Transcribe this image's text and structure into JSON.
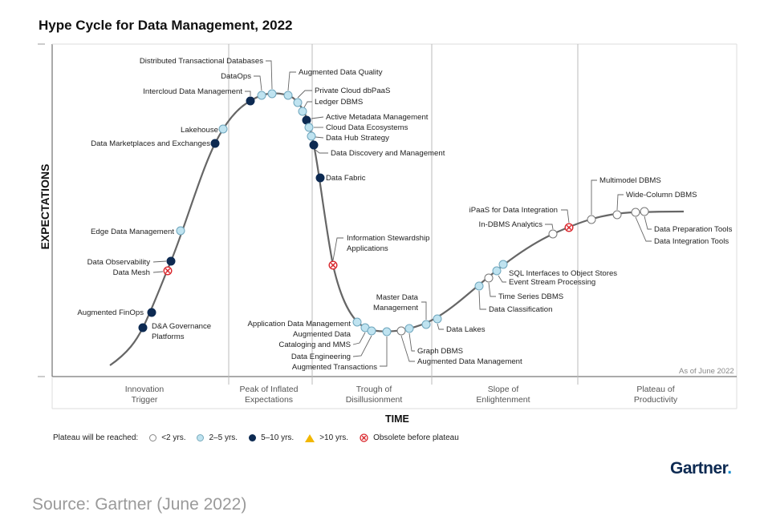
{
  "title": "Hype Cycle for Data Management, 2022",
  "y_axis_label": "EXPECTATIONS",
  "x_axis_label": "TIME",
  "as_of": "As of June 2022",
  "phases": [
    {
      "lines": [
        "Innovation",
        "Trigger"
      ]
    },
    {
      "lines": [
        "Peak of Inflated",
        "Expectations"
      ]
    },
    {
      "lines": [
        "Trough of",
        "Disillusionment"
      ]
    },
    {
      "lines": [
        "Slope of",
        "Enlightenment"
      ]
    },
    {
      "lines": [
        "Plateau of",
        "Productivity"
      ]
    }
  ],
  "legend": {
    "title": "Plateau will be reached:",
    "items": [
      {
        "type": "lt2",
        "label": "<2 yrs."
      },
      {
        "type": "2to5",
        "label": "2–5 yrs."
      },
      {
        "type": "5to10",
        "label": "5–10 yrs."
      },
      {
        "type": "gt10",
        "label": ">10 yrs."
      },
      {
        "type": "obsolete",
        "label": "Obsolete before plateau"
      }
    ]
  },
  "colors": {
    "lt2": "#ffffff",
    "2to5": "#bfe3f0",
    "5to10": "#0d2a52",
    "gt10": "#f2b701",
    "obsolete": "#d9252b",
    "curve": "#666666"
  },
  "technologies": [
    {
      "lines": [
        "D&A Governance",
        "Platforms"
      ],
      "type": "5to10"
    },
    {
      "lines": [
        "Augmented FinOps"
      ],
      "type": "5to10"
    },
    {
      "lines": [
        "Data Mesh"
      ],
      "type": "obsolete"
    },
    {
      "lines": [
        "Data Observability"
      ],
      "type": "5to10"
    },
    {
      "lines": [
        "Edge Data Management"
      ],
      "type": "2to5"
    },
    {
      "lines": [
        "Data Marketplaces and Exchanges"
      ],
      "type": "5to10"
    },
    {
      "lines": [
        "Lakehouse"
      ],
      "type": "2to5"
    },
    {
      "lines": [
        "Intercloud Data Management"
      ],
      "type": "5to10"
    },
    {
      "lines": [
        "DataOps"
      ],
      "type": "2to5"
    },
    {
      "lines": [
        "Distributed Transactional Databases"
      ],
      "type": "2to5"
    },
    {
      "lines": [
        "Augmented Data Quality"
      ],
      "type": "2to5"
    },
    {
      "lines": [
        "Private Cloud dbPaaS"
      ],
      "type": "2to5"
    },
    {
      "lines": [
        "Ledger DBMS"
      ],
      "type": "2to5"
    },
    {
      "lines": [
        "Active Metadata Management"
      ],
      "type": "5to10"
    },
    {
      "lines": [
        "Cloud Data Ecosystems"
      ],
      "type": "2to5"
    },
    {
      "lines": [
        "Data Hub Strategy"
      ],
      "type": "2to5"
    },
    {
      "lines": [
        "Data Discovery and Management"
      ],
      "type": "5to10"
    },
    {
      "lines": [
        "Data Fabric"
      ],
      "type": "5to10"
    },
    {
      "lines": [
        "Information Stewardship",
        "Applications"
      ],
      "type": "obsolete"
    },
    {
      "lines": [
        "Application Data Management"
      ],
      "type": "2to5"
    },
    {
      "lines": [
        "Augmented Data",
        "Cataloging and MMS"
      ],
      "type": "2to5"
    },
    {
      "lines": [
        "Data Engineering"
      ],
      "type": "2to5"
    },
    {
      "lines": [
        "Augmented Transactions"
      ],
      "type": "2to5"
    },
    {
      "lines": [
        "Augmented Data Management"
      ],
      "type": "lt2"
    },
    {
      "lines": [
        "Graph DBMS"
      ],
      "type": "2to5"
    },
    {
      "lines": [
        "Master Data",
        "Management"
      ],
      "type": "2to5"
    },
    {
      "lines": [
        "Data Lakes"
      ],
      "type": "2to5"
    },
    {
      "lines": [
        "Data Classification"
      ],
      "type": "2to5"
    },
    {
      "lines": [
        "Time Series DBMS"
      ],
      "type": "lt2"
    },
    {
      "lines": [
        "Event Stream Processing"
      ],
      "type": "2to5"
    },
    {
      "lines": [
        "SQL Interfaces to Object Stores"
      ],
      "type": "2to5"
    },
    {
      "lines": [
        "In-DBMS Analytics"
      ],
      "type": "lt2"
    },
    {
      "lines": [
        "iPaaS for Data Integration"
      ],
      "type": "obsolete"
    },
    {
      "lines": [
        "Multimodel DBMS"
      ],
      "type": "lt2"
    },
    {
      "lines": [
        "Wide-Column DBMS"
      ],
      "type": "lt2"
    },
    {
      "lines": [
        "Data Integration Tools"
      ],
      "type": "lt2"
    },
    {
      "lines": [
        "Data Preparation Tools"
      ],
      "type": "lt2"
    }
  ],
  "logo": "Gartner",
  "source": "Source: Gartner (June 2022)"
}
